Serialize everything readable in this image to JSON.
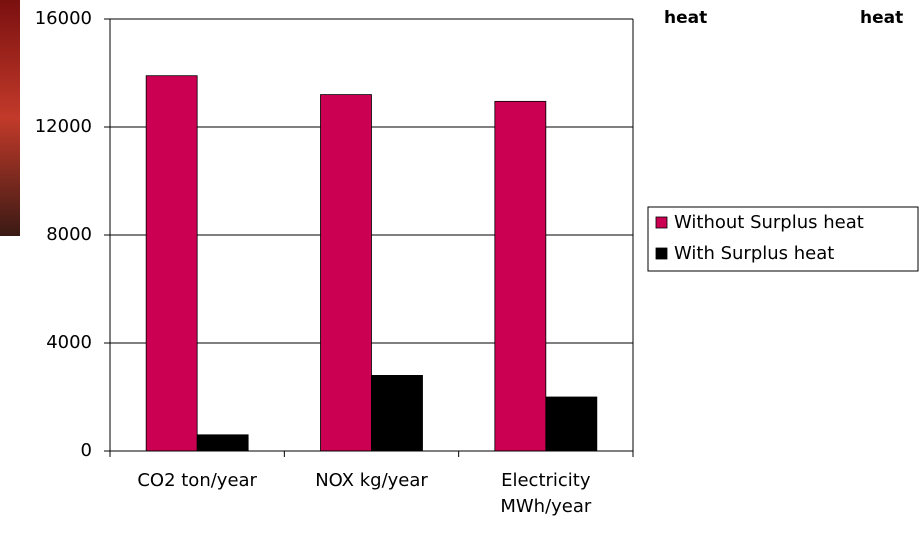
{
  "cropped_labels": [
    "heat",
    "heat"
  ],
  "chart_data": {
    "type": "bar",
    "categories": [
      "CO2 ton/year",
      "NOX kg/year",
      "Electricity MWh/year"
    ],
    "series": [
      {
        "name": "Without Surplus heat",
        "color": "#cc0052",
        "values": [
          13900,
          13200,
          12950
        ]
      },
      {
        "name": "With Surplus heat",
        "color": "#000000",
        "values": [
          600,
          2800,
          2000
        ]
      }
    ],
    "ylim": [
      0,
      16000
    ],
    "yticks": [
      0,
      4000,
      8000,
      12000,
      16000
    ],
    "grid": true,
    "legend": "right"
  }
}
